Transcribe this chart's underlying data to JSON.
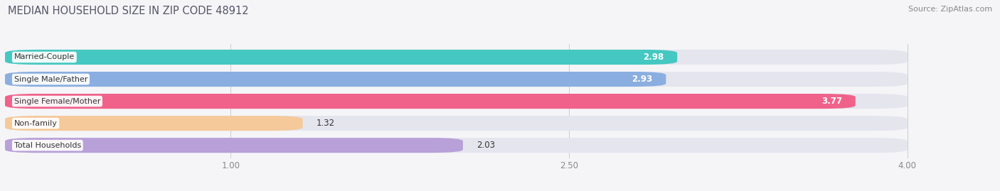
{
  "title": "MEDIAN HOUSEHOLD SIZE IN ZIP CODE 48912",
  "source": "Source: ZipAtlas.com",
  "categories": [
    "Married-Couple",
    "Single Male/Father",
    "Single Female/Mother",
    "Non-family",
    "Total Households"
  ],
  "values": [
    2.98,
    2.93,
    3.77,
    1.32,
    2.03
  ],
  "colors": [
    "#45c8c1",
    "#8aaee0",
    "#f0628a",
    "#f5c99a",
    "#b8a0d8"
  ],
  "xlim_min": 0,
  "xlim_max": 4.3,
  "xaxis_max": 4.0,
  "xticks": [
    1.0,
    2.5,
    4.0
  ],
  "bar_height": 0.68,
  "background_color": "#f5f5f8",
  "bar_bg_color": "#e5e5ee",
  "value_fontsize": 8.5,
  "label_fontsize": 8,
  "title_fontsize": 10.5,
  "source_fontsize": 8,
  "title_color": "#555566",
  "label_color": "#333333",
  "tick_color": "#888888"
}
